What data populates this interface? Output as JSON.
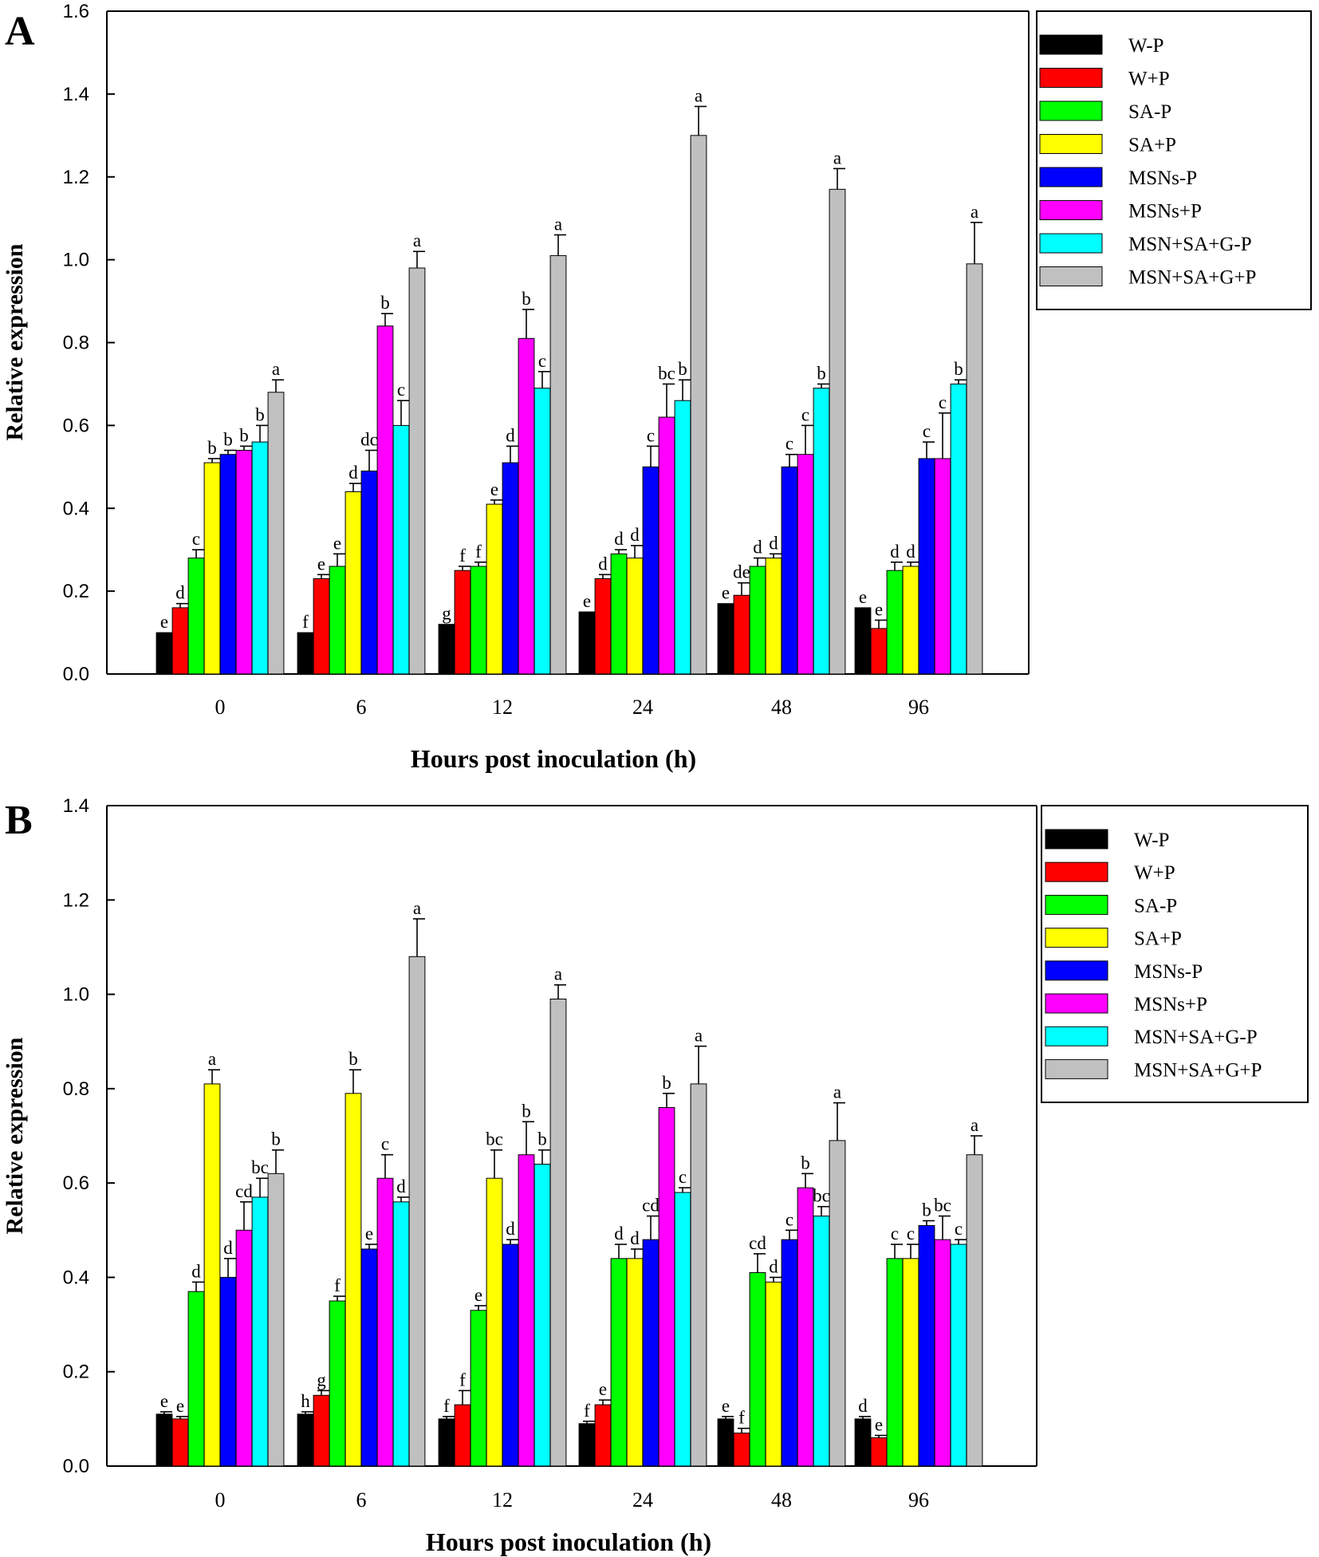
{
  "series_colors": [
    "#000000",
    "#ff0000",
    "#00ff00",
    "#ffff00",
    "#0000ff",
    "#ff00ff",
    "#00ffff",
    "#c0c0c0"
  ],
  "chart_data": [
    {
      "panel": "A",
      "type": "bar",
      "xlabel": "Hours post inoculation (h)",
      "ylabel": "Relative expression",
      "ylim": [
        0,
        1.6
      ],
      "yticks": [
        "0.0",
        "0.2",
        "0.4",
        "0.6",
        "0.8",
        "1.0",
        "1.2",
        "1.4",
        "1.6"
      ],
      "categories": [
        "0",
        "6",
        "12",
        "24",
        "48",
        "96"
      ],
      "legend_position": "right",
      "series": [
        {
          "name": "W-P",
          "values": [
            0.1,
            0.1,
            0.12,
            0.15,
            0.17,
            0.16
          ],
          "err": [
            0.0,
            0.0,
            0.0,
            0.0,
            0.0,
            0.0
          ],
          "letters": [
            "e",
            "f",
            "g",
            "e",
            "e",
            "e"
          ]
        },
        {
          "name": "W+P",
          "values": [
            0.16,
            0.23,
            0.25,
            0.23,
            0.19,
            0.11
          ],
          "err": [
            0.01,
            0.01,
            0.01,
            0.01,
            0.03,
            0.02
          ],
          "letters": [
            "d",
            "e",
            "f",
            "d",
            "de",
            "e"
          ]
        },
        {
          "name": "SA-P",
          "values": [
            0.28,
            0.26,
            0.26,
            0.29,
            0.26,
            0.25
          ],
          "err": [
            0.02,
            0.03,
            0.01,
            0.01,
            0.02,
            0.02
          ],
          "letters": [
            "c",
            "e",
            "f",
            "d",
            "d",
            "d"
          ]
        },
        {
          "name": "SA+P",
          "values": [
            0.51,
            0.44,
            0.41,
            0.28,
            0.28,
            0.26
          ],
          "err": [
            0.01,
            0.02,
            0.01,
            0.03,
            0.01,
            0.01
          ],
          "letters": [
            "b",
            "d",
            "e",
            "d",
            "d",
            "d"
          ]
        },
        {
          "name": "MSNs-P",
          "values": [
            0.53,
            0.49,
            0.51,
            0.5,
            0.5,
            0.52
          ],
          "err": [
            0.01,
            0.05,
            0.04,
            0.05,
            0.03,
            0.04
          ],
          "letters": [
            "b",
            "dc",
            "d",
            "c",
            "c",
            "c"
          ]
        },
        {
          "name": "MSNs+P",
          "values": [
            0.54,
            0.84,
            0.81,
            0.62,
            0.53,
            0.52
          ],
          "err": [
            0.01,
            0.03,
            0.07,
            0.08,
            0.07,
            0.11
          ],
          "letters": [
            "b",
            "b",
            "b",
            "bc",
            "c",
            "c"
          ]
        },
        {
          "name": "MSN+SA+G-P",
          "values": [
            0.56,
            0.6,
            0.69,
            0.66,
            0.69,
            0.7
          ],
          "err": [
            0.04,
            0.06,
            0.04,
            0.05,
            0.01,
            0.01
          ],
          "letters": [
            "b",
            "c",
            "c",
            "b",
            "b",
            "b"
          ]
        },
        {
          "name": "MSN+SA+G+P",
          "values": [
            0.68,
            0.98,
            1.01,
            1.3,
            1.17,
            0.99
          ],
          "err": [
            0.03,
            0.04,
            0.05,
            0.07,
            0.05,
            0.1
          ],
          "letters": [
            "a",
            "a",
            "a",
            "a",
            "a",
            "a"
          ]
        }
      ]
    },
    {
      "panel": "B",
      "type": "bar",
      "xlabel": "Hours post inoculation (h)",
      "ylabel": "Relative expression",
      "ylim": [
        0,
        1.4
      ],
      "yticks": [
        "0.0",
        "0.2",
        "0.4",
        "0.6",
        "0.8",
        "1.0",
        "1.2",
        "1.4"
      ],
      "categories": [
        "0",
        "6",
        "12",
        "24",
        "48",
        "96"
      ],
      "legend_position": "right",
      "series": [
        {
          "name": "W-P",
          "values": [
            0.11,
            0.11,
            0.1,
            0.09,
            0.1,
            0.1
          ],
          "err": [
            0.005,
            0.005,
            0.005,
            0.005,
            0.005,
            0.005
          ],
          "letters": [
            "e",
            "h",
            "f",
            "f",
            "e",
            "d"
          ]
        },
        {
          "name": "W+P",
          "values": [
            0.1,
            0.15,
            0.13,
            0.13,
            0.07,
            0.06
          ],
          "err": [
            0.005,
            0.01,
            0.03,
            0.01,
            0.01,
            0.005
          ],
          "letters": [
            "e",
            "g",
            "f",
            "e",
            "f",
            "e"
          ]
        },
        {
          "name": "SA-P",
          "values": [
            0.37,
            0.35,
            0.33,
            0.44,
            0.41,
            0.44
          ],
          "err": [
            0.02,
            0.01,
            0.01,
            0.03,
            0.04,
            0.03
          ],
          "letters": [
            "d",
            "f",
            "e",
            "d",
            "cd",
            "c"
          ]
        },
        {
          "name": "SA+P",
          "values": [
            0.81,
            0.79,
            0.61,
            0.44,
            0.39,
            0.44
          ],
          "err": [
            0.03,
            0.05,
            0.06,
            0.02,
            0.01,
            0.03
          ],
          "letters": [
            "a",
            "b",
            "bc",
            "d",
            "d",
            "c"
          ]
        },
        {
          "name": "MSNs-P",
          "values": [
            0.4,
            0.46,
            0.47,
            0.48,
            0.48,
            0.51
          ],
          "err": [
            0.04,
            0.01,
            0.01,
            0.05,
            0.02,
            0.01
          ],
          "letters": [
            "d",
            "e",
            "d",
            "cd",
            "c",
            "b"
          ]
        },
        {
          "name": "MSNs+P",
          "values": [
            0.5,
            0.61,
            0.66,
            0.76,
            0.59,
            0.48
          ],
          "err": [
            0.06,
            0.05,
            0.07,
            0.03,
            0.03,
            0.05
          ],
          "letters": [
            "cd",
            "c",
            "b",
            "b",
            "b",
            "bc"
          ]
        },
        {
          "name": "MSN+SA+G-P",
          "values": [
            0.57,
            0.56,
            0.64,
            0.58,
            0.53,
            0.47
          ],
          "err": [
            0.04,
            0.01,
            0.03,
            0.01,
            0.02,
            0.01
          ],
          "letters": [
            "bc",
            "d",
            "b",
            "c",
            "bc",
            "c"
          ]
        },
        {
          "name": "MSN+SA+G+P",
          "values": [
            0.62,
            1.08,
            0.99,
            0.81,
            0.69,
            0.66
          ],
          "err": [
            0.05,
            0.08,
            0.03,
            0.08,
            0.08,
            0.04
          ],
          "letters": [
            "b",
            "a",
            "a",
            "a",
            "a",
            "a"
          ]
        }
      ]
    }
  ]
}
